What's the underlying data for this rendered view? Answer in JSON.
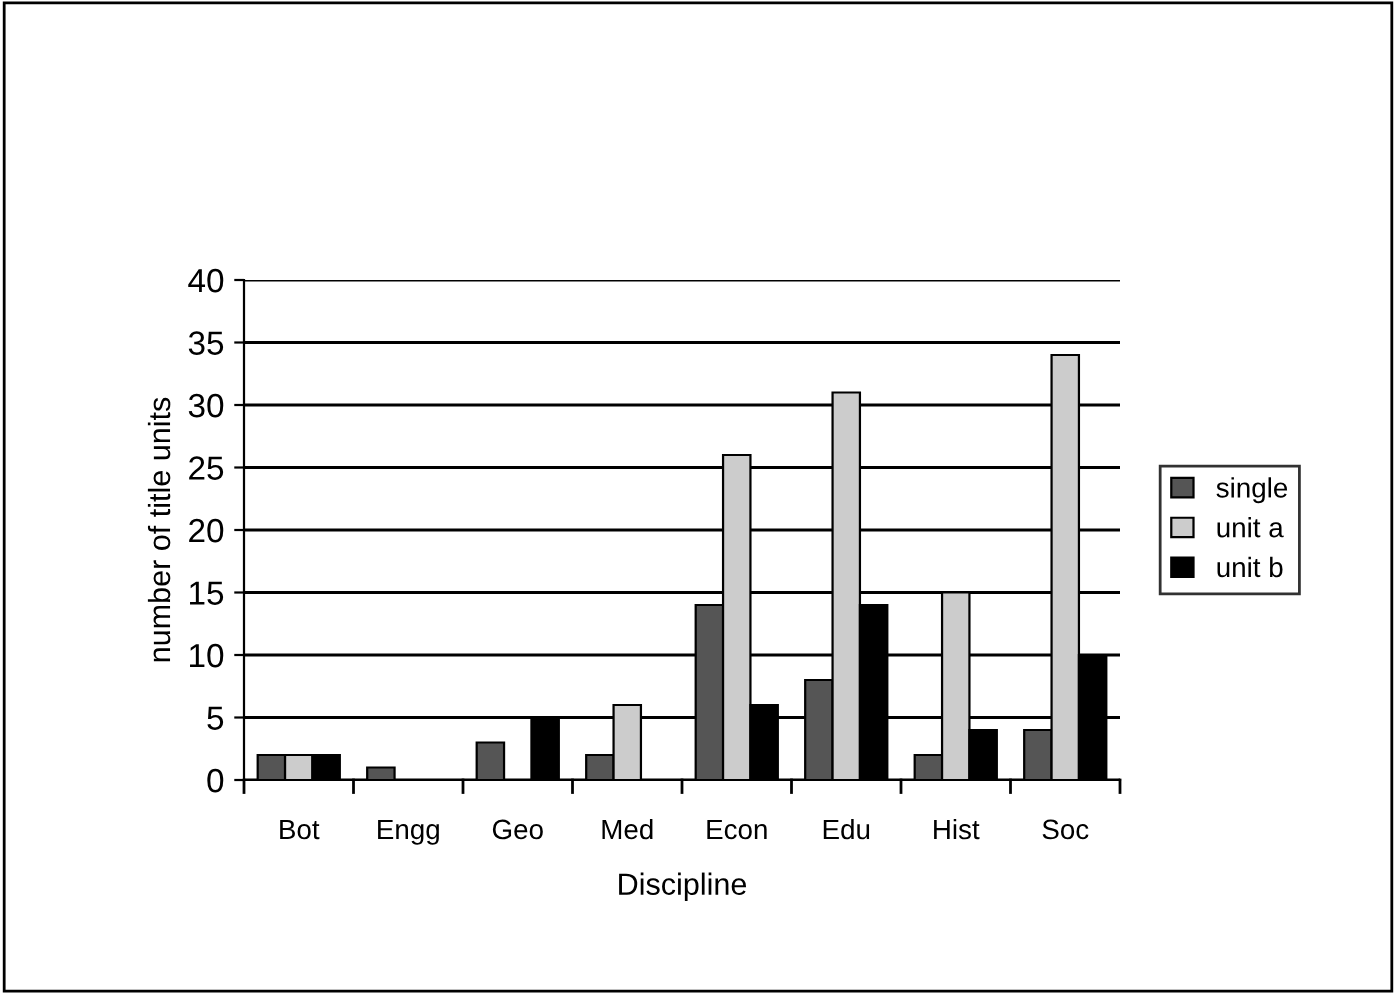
{
  "chart_data": {
    "type": "bar",
    "xlabel": "Discipline",
    "ylabel": "number of title units",
    "categories": [
      "Bot",
      "Engg",
      "Geo",
      "Med",
      "Econ",
      "Edu",
      "Hist",
      "Soc"
    ],
    "series": [
      {
        "name": "single",
        "color": "#555555",
        "values": [
          2,
          1,
          3,
          2,
          14,
          8,
          2,
          4
        ]
      },
      {
        "name": "unit a",
        "color": "#cccccc",
        "values": [
          2,
          null,
          null,
          6,
          26,
          31,
          15,
          34
        ]
      },
      {
        "name": "unit b",
        "color": "#000000",
        "values": [
          2,
          null,
          5,
          null,
          6,
          14,
          4,
          10
        ]
      }
    ],
    "ylim": [
      0,
      40
    ],
    "yticks": [
      0,
      5,
      10,
      15,
      20,
      25,
      30,
      35,
      40
    ],
    "grid": "y",
    "legend": "right"
  }
}
